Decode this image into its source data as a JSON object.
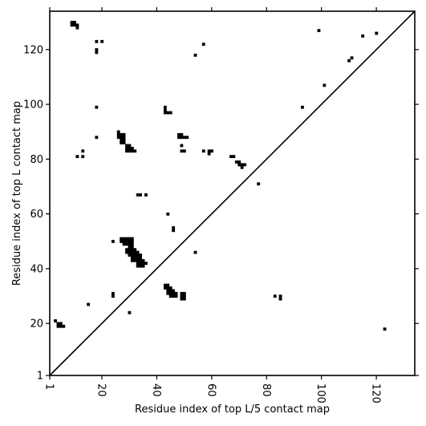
{
  "chart_data": {
    "type": "heatmap",
    "xlabel": "Residue index of top L/5 contact map",
    "ylabel": "Residue index of top L contact map",
    "xlim": [
      1,
      134
    ],
    "ylim": [
      1,
      134
    ],
    "x_ticks": [
      1,
      20,
      40,
      60,
      80,
      100,
      120
    ],
    "y_ticks": [
      1,
      20,
      40,
      60,
      80,
      100,
      120
    ],
    "x_tick_labels": [
      "1",
      "20",
      "40",
      "60",
      "80",
      "100",
      "120"
    ],
    "y_tick_labels": [
      "1",
      "20",
      "40",
      "60",
      "80",
      "100",
      "120"
    ],
    "diagonal": true,
    "colors": {
      "contact": "#000000",
      "background": "#ffffff",
      "diagonal": "#000000"
    },
    "contacts": [
      [
        9,
        130
      ],
      [
        9,
        129
      ],
      [
        10,
        130
      ],
      [
        10,
        129
      ],
      [
        11,
        129
      ],
      [
        11,
        128
      ],
      [
        18,
        123
      ],
      [
        18,
        120
      ],
      [
        18,
        119
      ],
      [
        20,
        123
      ],
      [
        18,
        99
      ],
      [
        18,
        88
      ],
      [
        11,
        81
      ],
      [
        13,
        81
      ],
      [
        13,
        83
      ],
      [
        26,
        90
      ],
      [
        26,
        89
      ],
      [
        27,
        89
      ],
      [
        28,
        89
      ],
      [
        26,
        88
      ],
      [
        27,
        88
      ],
      [
        28,
        88
      ],
      [
        27,
        87
      ],
      [
        28,
        87
      ],
      [
        27,
        86
      ],
      [
        28,
        86
      ],
      [
        29,
        85
      ],
      [
        30,
        85
      ],
      [
        29,
        84
      ],
      [
        30,
        84
      ],
      [
        31,
        84
      ],
      [
        29,
        83
      ],
      [
        30,
        83
      ],
      [
        31,
        83
      ],
      [
        32,
        83
      ],
      [
        33,
        67
      ],
      [
        34,
        67
      ],
      [
        36,
        67
      ],
      [
        24,
        50
      ],
      [
        27,
        51
      ],
      [
        28,
        51
      ],
      [
        29,
        51
      ],
      [
        30,
        51
      ],
      [
        31,
        51
      ],
      [
        27,
        50
      ],
      [
        28,
        50
      ],
      [
        29,
        50
      ],
      [
        30,
        50
      ],
      [
        31,
        50
      ],
      [
        28,
        49
      ],
      [
        29,
        49
      ],
      [
        30,
        49
      ],
      [
        31,
        49
      ],
      [
        30,
        48
      ],
      [
        31,
        48
      ],
      [
        29,
        47
      ],
      [
        30,
        47
      ],
      [
        31,
        47
      ],
      [
        32,
        47
      ],
      [
        29,
        46
      ],
      [
        30,
        46
      ],
      [
        31,
        46
      ],
      [
        32,
        46
      ],
      [
        33,
        46
      ],
      [
        30,
        45
      ],
      [
        31,
        45
      ],
      [
        32,
        45
      ],
      [
        33,
        45
      ],
      [
        34,
        45
      ],
      [
        31,
        44
      ],
      [
        32,
        44
      ],
      [
        33,
        44
      ],
      [
        34,
        44
      ],
      [
        31,
        43
      ],
      [
        32,
        43
      ],
      [
        33,
        43
      ],
      [
        34,
        43
      ],
      [
        35,
        43
      ],
      [
        33,
        42
      ],
      [
        34,
        42
      ],
      [
        35,
        42
      ],
      [
        36,
        42
      ],
      [
        33,
        41
      ],
      [
        34,
        41
      ],
      [
        35,
        41
      ],
      [
        24,
        31
      ],
      [
        24,
        30
      ],
      [
        30,
        24
      ],
      [
        15,
        27
      ],
      [
        3,
        21
      ],
      [
        4,
        20
      ],
      [
        5,
        20
      ],
      [
        4,
        19
      ],
      [
        5,
        19
      ],
      [
        6,
        19
      ],
      [
        43,
        99
      ],
      [
        43,
        98
      ],
      [
        43,
        97
      ],
      [
        44,
        97
      ],
      [
        45,
        97
      ],
      [
        49,
        89
      ],
      [
        48,
        89
      ],
      [
        48,
        88
      ],
      [
        49,
        88
      ],
      [
        50,
        88
      ],
      [
        51,
        88
      ],
      [
        49,
        85
      ],
      [
        49,
        83
      ],
      [
        50,
        83
      ],
      [
        44,
        60
      ],
      [
        46,
        55
      ],
      [
        46,
        54
      ],
      [
        43,
        34
      ],
      [
        44,
        34
      ],
      [
        43,
        33
      ],
      [
        44,
        33
      ],
      [
        45,
        33
      ],
      [
        44,
        32
      ],
      [
        45,
        32
      ],
      [
        46,
        32
      ],
      [
        44,
        31
      ],
      [
        45,
        31
      ],
      [
        46,
        31
      ],
      [
        47,
        31
      ],
      [
        45,
        30
      ],
      [
        46,
        30
      ],
      [
        47,
        30
      ],
      [
        49,
        31
      ],
      [
        50,
        31
      ],
      [
        49,
        30
      ],
      [
        50,
        30
      ],
      [
        49,
        29
      ],
      [
        50,
        29
      ],
      [
        54,
        118
      ],
      [
        57,
        122
      ],
      [
        57,
        83
      ],
      [
        59,
        83
      ],
      [
        59,
        82
      ],
      [
        60,
        83
      ],
      [
        67,
        81
      ],
      [
        68,
        81
      ],
      [
        69,
        79
      ],
      [
        70,
        79
      ],
      [
        70,
        78
      ],
      [
        71,
        78
      ],
      [
        72,
        78
      ],
      [
        71,
        77
      ],
      [
        54,
        46
      ],
      [
        77,
        71
      ],
      [
        83,
        30
      ],
      [
        85,
        30
      ],
      [
        85,
        29
      ],
      [
        93,
        99
      ],
      [
        99,
        127
      ],
      [
        101,
        107
      ],
      [
        110,
        116
      ],
      [
        111,
        117
      ],
      [
        115,
        125
      ],
      [
        120,
        126
      ],
      [
        123,
        18
      ]
    ]
  }
}
